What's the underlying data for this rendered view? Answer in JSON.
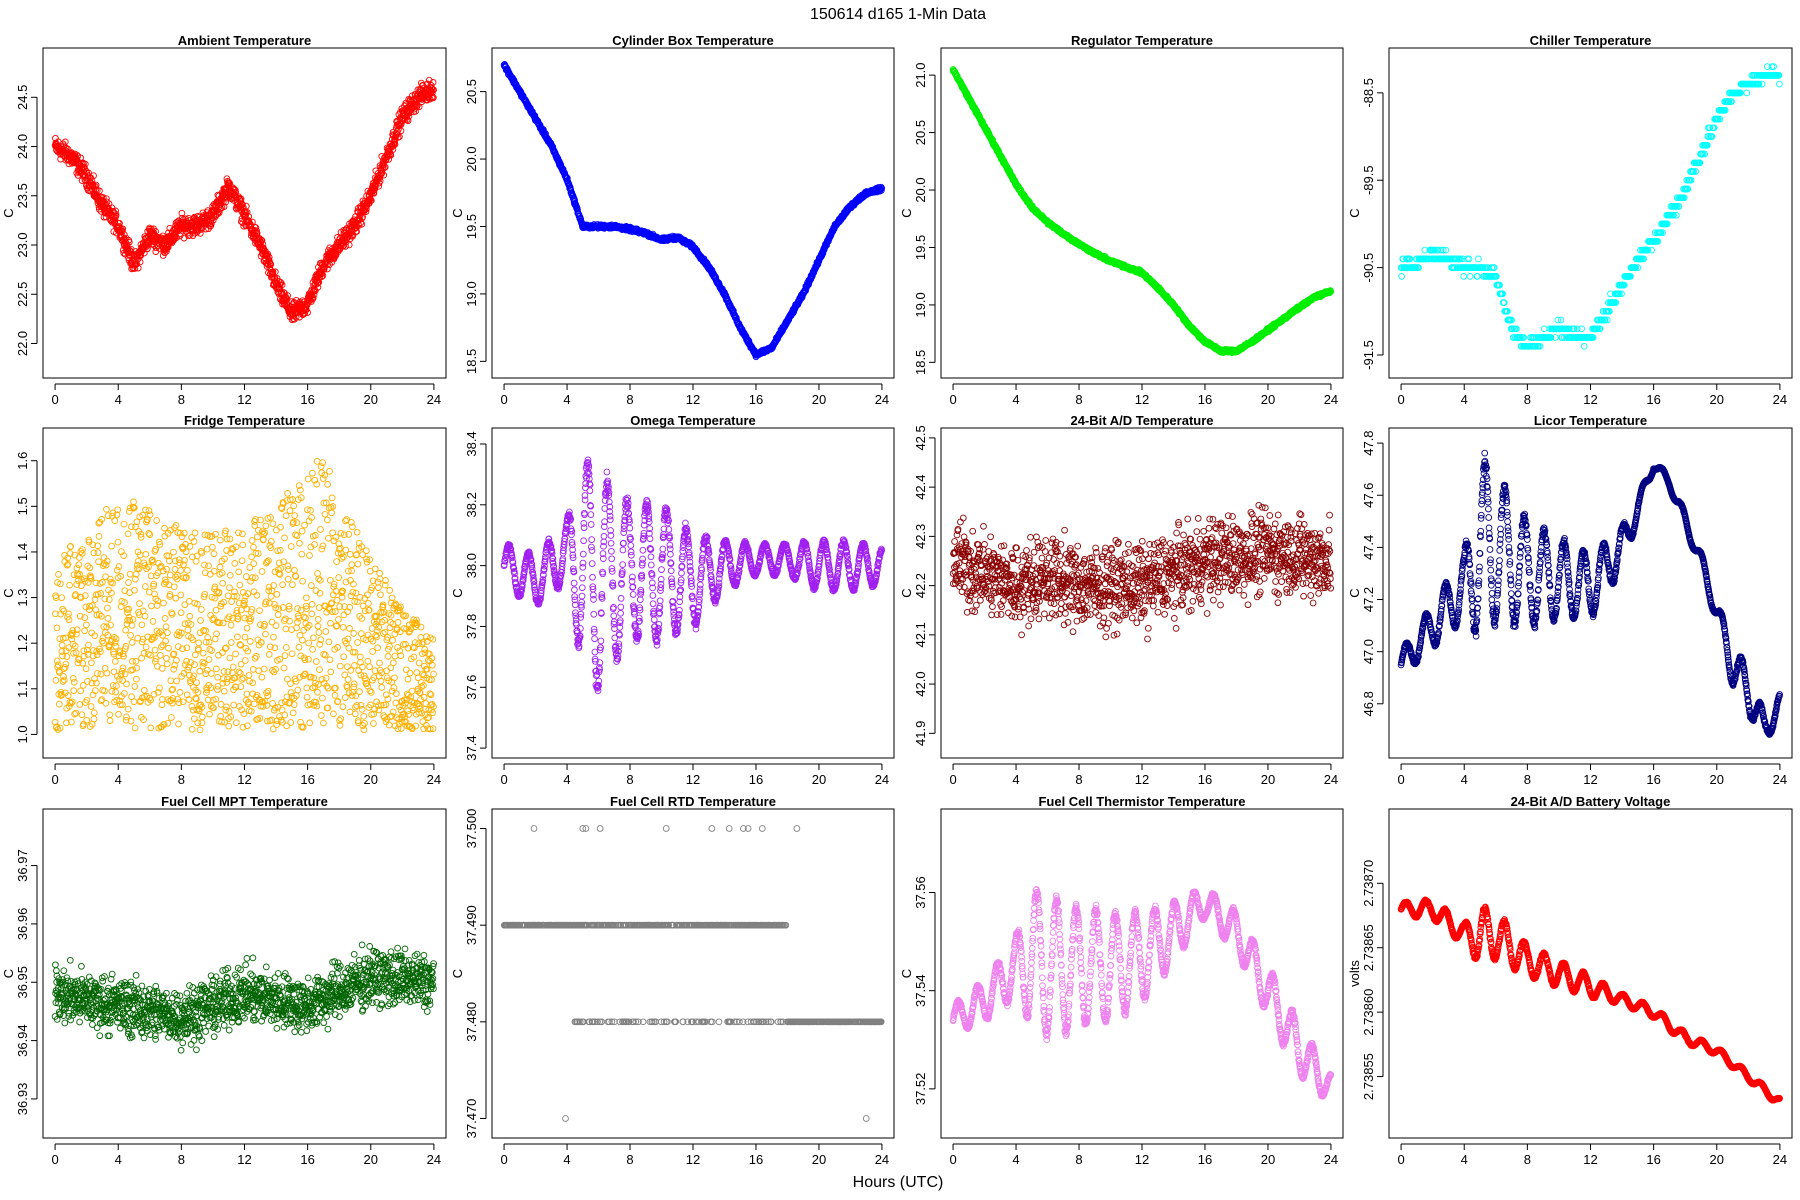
{
  "figure": {
    "title": "150614   d165   1-Min Data",
    "xlabel": "Hours (UTC)"
  },
  "chart_data": [
    {
      "type": "scatter",
      "title": "Ambient Temperature",
      "ylabel": "C",
      "color": "#ff0000",
      "xlim": [
        0,
        24
      ],
      "ylim": [
        21.75,
        24.9
      ],
      "xticks": [
        0,
        4,
        8,
        12,
        16,
        20,
        24
      ],
      "xtick_labels": [
        "0",
        "4",
        "8",
        "12",
        "16",
        "20",
        "24"
      ],
      "yticks": [
        22.0,
        22.5,
        23.0,
        23.5,
        24.0,
        24.5
      ],
      "ytick_labels": [
        "22.0",
        "22.5",
        "23.0",
        "23.5",
        "24.0",
        "24.5"
      ],
      "x": [
        0,
        1,
        2,
        3,
        4,
        5,
        6,
        7,
        8,
        9,
        10,
        11,
        12,
        13,
        14,
        15,
        16,
        17,
        18,
        19,
        20,
        21,
        22,
        23,
        24
      ],
      "y": [
        24.0,
        23.9,
        23.7,
        23.4,
        23.2,
        22.8,
        23.1,
        23.0,
        23.2,
        23.2,
        23.3,
        23.6,
        23.3,
        23.0,
        22.6,
        22.3,
        22.4,
        22.8,
        23.0,
        23.2,
        23.5,
        23.9,
        24.3,
        24.5,
        24.6
      ],
      "spread": 0.15,
      "style": "scatter"
    },
    {
      "type": "scatter",
      "title": "Cylinder Box Temperature",
      "ylabel": "C",
      "color": "#0000ff",
      "xlim": [
        0,
        24
      ],
      "ylim": [
        18.45,
        20.75
      ],
      "xticks": [
        0,
        4,
        8,
        12,
        16,
        20,
        24
      ],
      "xtick_labels": [
        "0",
        "4",
        "8",
        "12",
        "16",
        "20",
        "24"
      ],
      "yticks": [
        18.5,
        19.0,
        19.5,
        20.0,
        20.5
      ],
      "ytick_labels": [
        "18.5",
        "19.0",
        "19.5",
        "20.0",
        "20.5"
      ],
      "x": [
        0,
        1,
        2,
        3,
        4,
        5,
        6,
        7,
        8,
        9,
        10,
        11,
        12,
        13,
        14,
        15,
        16,
        17,
        18,
        19,
        20,
        21,
        22,
        23,
        24
      ],
      "y": [
        20.7,
        20.5,
        20.3,
        20.1,
        19.85,
        19.5,
        19.5,
        19.5,
        19.48,
        19.45,
        19.4,
        19.42,
        19.35,
        19.2,
        19.0,
        18.75,
        18.55,
        18.6,
        18.8,
        19.0,
        19.25,
        19.5,
        19.65,
        19.75,
        19.78
      ],
      "spread": 0.02,
      "style": "line"
    },
    {
      "type": "scatter",
      "title": "Regulator Temperature",
      "ylabel": "C",
      "color": "#00ee00",
      "xlim": [
        0,
        24
      ],
      "ylim": [
        18.45,
        21.15
      ],
      "xticks": [
        0,
        4,
        8,
        12,
        16,
        20,
        24
      ],
      "xtick_labels": [
        "0",
        "4",
        "8",
        "12",
        "16",
        "20",
        "24"
      ],
      "yticks": [
        18.5,
        19.0,
        19.5,
        20.0,
        20.5,
        21.0
      ],
      "ytick_labels": [
        "18.5",
        "19.0",
        "19.5",
        "20.0",
        "20.5",
        "21.0"
      ],
      "x": [
        0,
        1,
        2,
        3,
        4,
        5,
        6,
        7,
        8,
        9,
        10,
        11,
        12,
        13,
        14,
        15,
        16,
        17,
        18,
        19,
        20,
        21,
        22,
        23,
        24
      ],
      "y": [
        21.05,
        20.8,
        20.55,
        20.3,
        20.05,
        19.85,
        19.72,
        19.62,
        19.53,
        19.45,
        19.38,
        19.33,
        19.28,
        19.15,
        19.0,
        18.82,
        18.68,
        18.6,
        18.6,
        18.68,
        18.78,
        18.88,
        18.98,
        19.07,
        19.12
      ],
      "spread": 0.02,
      "style": "line"
    },
    {
      "type": "scatter",
      "title": "Chiller Temperature",
      "ylabel": "C",
      "color": "#00ffff",
      "xlim": [
        0,
        24
      ],
      "ylim": [
        -91.65,
        -88.1
      ],
      "xticks": [
        0,
        4,
        8,
        12,
        16,
        20,
        24
      ],
      "xtick_labels": [
        "0",
        "4",
        "8",
        "12",
        "16",
        "20",
        "24"
      ],
      "yticks": [
        -91.5,
        -90.5,
        -89.5,
        -88.5
      ],
      "ytick_labels": [
        "-91.5",
        "-90.5",
        "-89.5",
        "-88.5"
      ],
      "x": [
        0,
        1,
        2,
        3,
        4,
        5,
        6,
        7,
        8,
        9,
        10,
        11,
        12,
        13,
        14,
        15,
        16,
        17,
        18,
        19,
        20,
        21,
        22,
        23,
        24
      ],
      "y": [
        -90.5,
        -90.45,
        -90.35,
        -90.4,
        -90.5,
        -90.5,
        -90.6,
        -91.2,
        -91.4,
        -91.3,
        -91.2,
        -91.3,
        -91.3,
        -91.0,
        -90.7,
        -90.4,
        -90.2,
        -89.9,
        -89.6,
        -89.2,
        -88.8,
        -88.5,
        -88.4,
        -88.3,
        -88.3
      ],
      "spread": 0.1,
      "style": "step"
    },
    {
      "type": "scatter",
      "title": "Fridge Temperature",
      "ylabel": "C",
      "color": "#ffb000",
      "xlim": [
        0,
        24
      ],
      "ylim": [
        0.97,
        1.65
      ],
      "xticks": [
        0,
        4,
        8,
        12,
        16,
        20,
        24
      ],
      "xtick_labels": [
        "0",
        "4",
        "8",
        "12",
        "16",
        "20",
        "24"
      ],
      "yticks": [
        1.0,
        1.1,
        1.2,
        1.3,
        1.4,
        1.5,
        1.6
      ],
      "ytick_labels": [
        "1.0",
        "1.1",
        "1.2",
        "1.3",
        "1.4",
        "1.5",
        "1.6"
      ],
      "x": [
        0,
        2,
        4,
        6,
        8,
        10,
        12,
        14,
        16,
        17,
        18,
        20,
        22,
        24
      ],
      "y": [
        1.38,
        1.45,
        1.52,
        1.5,
        1.45,
        1.44,
        1.46,
        1.5,
        1.58,
        1.62,
        1.52,
        1.4,
        1.28,
        1.22
      ],
      "ymin_env": 1.01,
      "style": "band"
    },
    {
      "type": "scatter",
      "title": "Omega Temperature",
      "ylabel": "C",
      "color": "#a020f0",
      "xlim": [
        0,
        24
      ],
      "ylim": [
        37.4,
        38.42
      ],
      "xticks": [
        0,
        4,
        8,
        12,
        16,
        20,
        24
      ],
      "xtick_labels": [
        "0",
        "4",
        "8",
        "12",
        "16",
        "20",
        "24"
      ],
      "yticks": [
        37.4,
        37.6,
        37.8,
        38.0,
        38.2,
        38.4
      ],
      "ytick_labels": [
        "37.4",
        "37.6",
        "37.8",
        "38.0",
        "38.2",
        "38.4"
      ],
      "x": [
        0,
        2,
        4,
        5,
        6,
        8,
        10,
        12,
        14,
        16,
        18,
        20,
        22,
        24
      ],
      "y": [
        38.0,
        37.95,
        38.05,
        38.0,
        37.95,
        37.98,
        37.98,
        37.95,
        38.0,
        38.02,
        38.02,
        38.0,
        38.0,
        38.0
      ],
      "amp": [
        0.07,
        0.08,
        0.1,
        0.35,
        0.35,
        0.22,
        0.22,
        0.15,
        0.08,
        0.05,
        0.05,
        0.08,
        0.08,
        0.06
      ],
      "style": "oscill"
    },
    {
      "type": "scatter",
      "title": "24-Bit A/D Temperature",
      "ylabel": "C",
      "color": "#8b0000",
      "xlim": [
        0,
        24
      ],
      "ylim": [
        41.87,
        42.5
      ],
      "xticks": [
        0,
        4,
        8,
        12,
        16,
        20,
        24
      ],
      "xtick_labels": [
        "0",
        "4",
        "8",
        "12",
        "16",
        "20",
        "24"
      ],
      "yticks": [
        41.9,
        42.0,
        42.1,
        42.2,
        42.3,
        42.4,
        42.5
      ],
      "ytick_labels": [
        "41.9",
        "42.0",
        "42.1",
        "42.2",
        "42.3",
        "42.4",
        "42.5"
      ],
      "x": [
        0,
        4,
        6,
        8,
        12,
        16,
        20,
        24
      ],
      "y": [
        42.25,
        42.2,
        42.22,
        42.2,
        42.2,
        42.25,
        42.27,
        42.25
      ],
      "spread": 0.12,
      "style": "scatter"
    },
    {
      "type": "scatter",
      "title": "Licor Temperature",
      "ylabel": "C",
      "color": "#000080",
      "xlim": [
        0,
        24
      ],
      "ylim": [
        46.63,
        47.82
      ],
      "xticks": [
        0,
        4,
        8,
        12,
        16,
        20,
        24
      ],
      "xtick_labels": [
        "0",
        "4",
        "8",
        "12",
        "16",
        "20",
        "24"
      ],
      "yticks": [
        46.8,
        47.0,
        47.2,
        47.4,
        47.6,
        47.8
      ],
      "ytick_labels": [
        "46.8",
        "47.0",
        "47.2",
        "47.4",
        "47.6",
        "47.8"
      ],
      "x": [
        0,
        2,
        4,
        5,
        6,
        8,
        10,
        12,
        14,
        15,
        16,
        17,
        18,
        19,
        20,
        21,
        22,
        23,
        24
      ],
      "y": [
        46.95,
        47.1,
        47.25,
        47.4,
        47.4,
        47.3,
        47.28,
        47.25,
        47.4,
        47.55,
        47.72,
        47.65,
        47.5,
        47.35,
        47.15,
        46.95,
        46.85,
        46.7,
        46.8
      ],
      "amp": [
        0.05,
        0.08,
        0.12,
        0.35,
        0.28,
        0.2,
        0.15,
        0.12,
        0.08,
        0.04,
        0.02,
        0.02,
        0.03,
        0.03,
        0.04,
        0.08,
        0.08,
        0.06,
        0.04
      ],
      "style": "oscill"
    },
    {
      "type": "scatter",
      "title": "Fuel Cell MPT Temperature",
      "ylabel": "C",
      "color": "#006400",
      "xlim": [
        0,
        24
      ],
      "ylim": [
        36.925,
        36.978
      ],
      "xticks": [
        0,
        4,
        8,
        12,
        16,
        20,
        24
      ],
      "xtick_labels": [
        "0",
        "4",
        "8",
        "12",
        "16",
        "20",
        "24"
      ],
      "yticks": [
        36.93,
        36.94,
        36.95,
        36.96,
        36.97
      ],
      "ytick_labels": [
        "36.93",
        "36.94",
        "36.95",
        "36.96",
        "36.97"
      ],
      "x": [
        0,
        4,
        8,
        12,
        16,
        20,
        24
      ],
      "y": [
        36.948,
        36.946,
        36.944,
        36.948,
        36.946,
        36.951,
        36.95
      ],
      "spread": 0.007,
      "style": "scatter"
    },
    {
      "type": "scatter",
      "title": "Fuel Cell RTD Temperature",
      "ylabel": "C",
      "color": "#808080",
      "xlim": [
        0,
        24
      ],
      "ylim": [
        37.469,
        37.501
      ],
      "xticks": [
        0,
        4,
        8,
        12,
        16,
        20,
        24
      ],
      "xtick_labels": [
        "0",
        "4",
        "8",
        "12",
        "16",
        "20",
        "24"
      ],
      "yticks": [
        37.47,
        37.48,
        37.49,
        37.5
      ],
      "ytick_labels": [
        "37.470",
        "37.480",
        "37.490",
        "37.500"
      ],
      "levels": [
        37.48,
        37.49
      ],
      "style": "levels"
    },
    {
      "type": "scatter",
      "title": "Fuel Cell Thermistor Temperature",
      "ylabel": "C",
      "color": "#ee82ee",
      "xlim": [
        0,
        24
      ],
      "ylim": [
        37.512,
        37.575
      ],
      "xticks": [
        0,
        4,
        8,
        12,
        16,
        20,
        24
      ],
      "xtick_labels": [
        "0",
        "4",
        "8",
        "12",
        "16",
        "20",
        "24"
      ],
      "yticks": [
        37.52,
        37.54,
        37.56
      ],
      "ytick_labels": [
        "37.52",
        "37.54",
        "37.56"
      ],
      "x": [
        0,
        2,
        4,
        5,
        6,
        8,
        10,
        12,
        14,
        16,
        18,
        20,
        22,
        24
      ],
      "y": [
        37.534,
        37.538,
        37.545,
        37.547,
        37.545,
        37.545,
        37.545,
        37.547,
        37.552,
        37.558,
        37.552,
        37.54,
        37.528,
        37.52
      ],
      "amp": [
        0.003,
        0.004,
        0.006,
        0.014,
        0.014,
        0.012,
        0.011,
        0.009,
        0.006,
        0.003,
        0.004,
        0.005,
        0.005,
        0.003
      ],
      "style": "oscill"
    },
    {
      "type": "scatter",
      "title": "24-Bit A/D Battery Voltage",
      "ylabel": "volts",
      "color": "#ff0000",
      "xlim": [
        0,
        24
      ],
      "ylim": [
        2.73851,
        2.73875
      ],
      "xticks": [
        0,
        4,
        8,
        12,
        16,
        20,
        24
      ],
      "xtick_labels": [
        "0",
        "4",
        "8",
        "12",
        "16",
        "20",
        "24"
      ],
      "yticks": [
        2.73855,
        2.7386,
        2.73865,
        2.7387
      ],
      "ytick_labels": [
        "2.73855",
        "2.73860",
        "2.73865",
        "2.73870"
      ],
      "x": [
        0,
        2,
        4,
        5,
        6,
        8,
        10,
        12,
        14,
        16,
        18,
        20,
        22,
        24
      ],
      "y": [
        2.73868,
        2.73868,
        2.73866,
        2.73866,
        2.73866,
        2.73864,
        2.73863,
        2.73862,
        2.73861,
        2.7386,
        2.73858,
        2.73857,
        2.73855,
        2.73853
      ],
      "amp": [
        5e-06,
        7e-06,
        8e-06,
        2.2e-05,
        1.8e-05,
        1.2e-05,
        1e-05,
        8e-06,
        4e-06,
        4e-06,
        4e-06,
        3e-06,
        3e-06,
        3e-06
      ],
      "style": "oscill"
    }
  ]
}
